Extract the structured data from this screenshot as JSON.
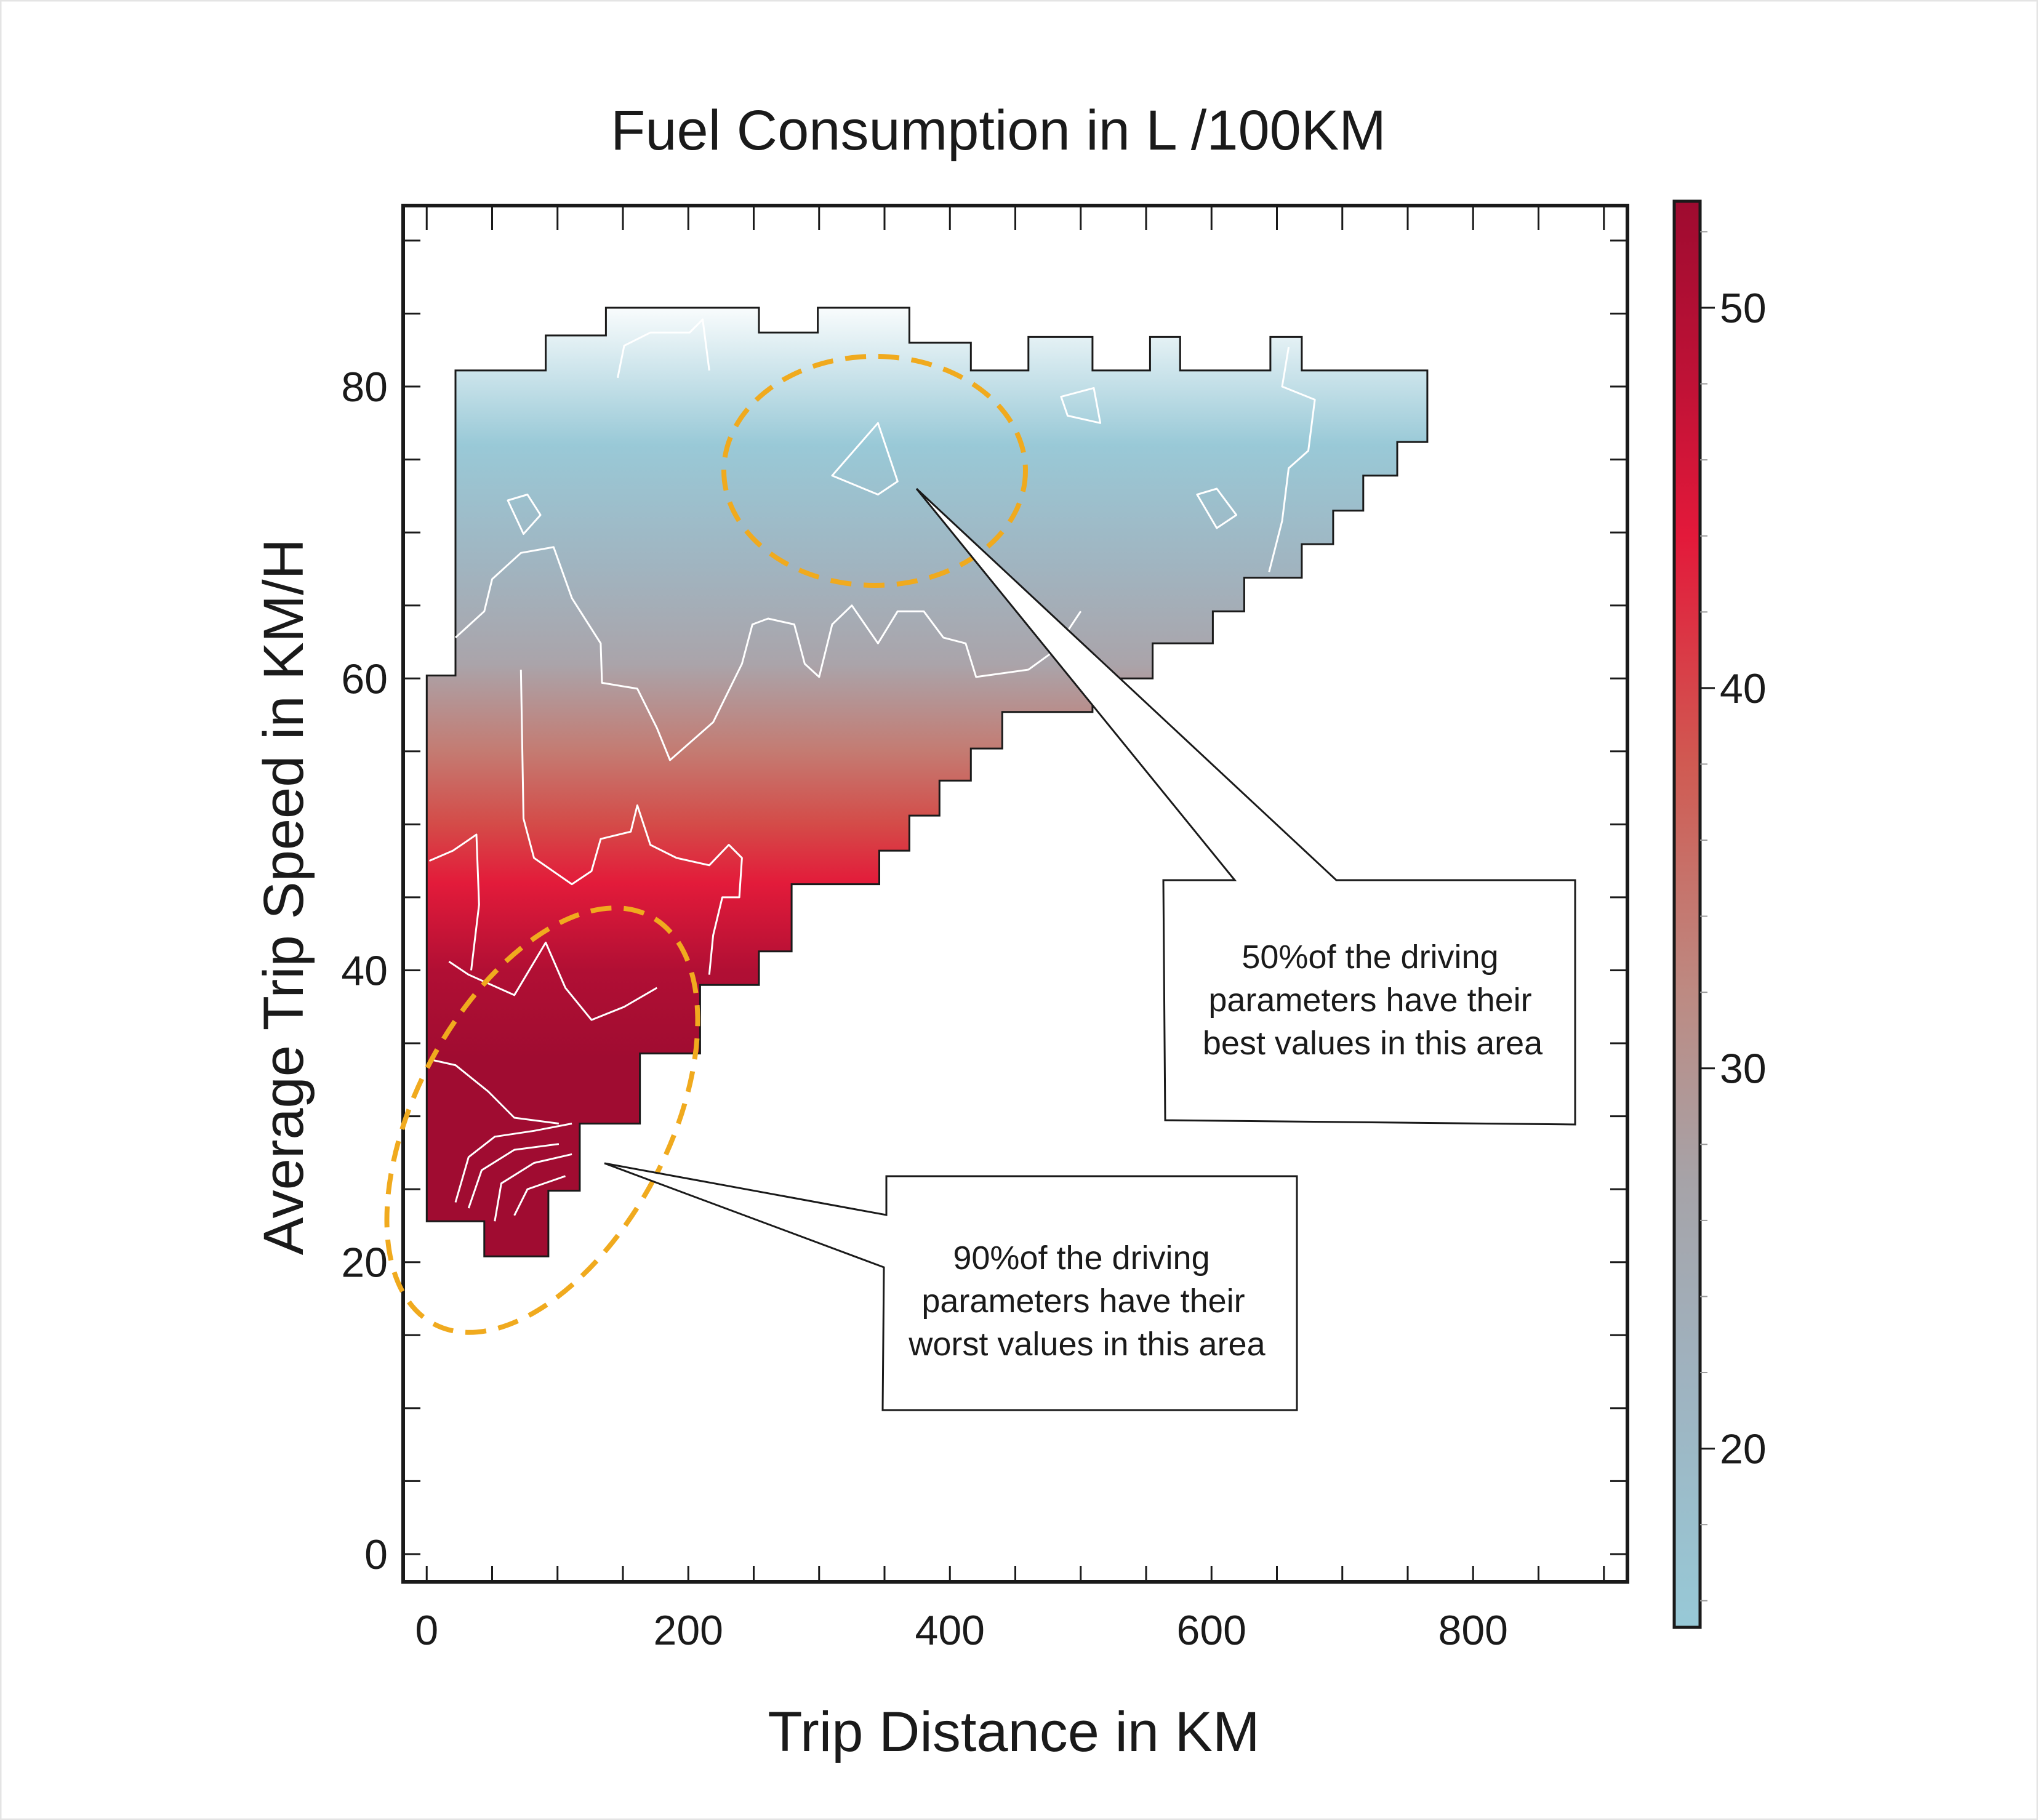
{
  "chart_data": {
    "type": "heatmap",
    "title": "Fuel Consumption in L /100KM",
    "xlabel": "Trip Distance in KM",
    "ylabel": "Average Trip Speed in KM/H",
    "xlim": [
      -18,
      918
    ],
    "ylim": [
      -1.9,
      92.4
    ],
    "xticks": [
      0,
      200,
      400,
      600,
      800
    ],
    "xtick_labels": [
      "0",
      "200",
      "400",
      "600",
      "800"
    ],
    "yticks": [
      0,
      20,
      40,
      60,
      80
    ],
    "ytick_labels": [
      "0",
      "20",
      "40",
      "60",
      "80"
    ],
    "x_minor_step": 50,
    "y_minor_step": 5,
    "grid": false,
    "colorbar": {
      "range": [
        15.3,
        52.8
      ],
      "ticks": [
        20,
        30,
        40,
        50
      ],
      "tick_labels": [
        "20",
        "30",
        "40",
        "50"
      ],
      "minor_step": 2,
      "stops": [
        {
          "value": 15.3,
          "color": "#97c9d7"
        },
        {
          "value": 22,
          "color": "#9fb2bf"
        },
        {
          "value": 27,
          "color": "#a6a3a8"
        },
        {
          "value": 32,
          "color": "#bd8a82"
        },
        {
          "value": 38,
          "color": "#d05a52"
        },
        {
          "value": 44,
          "color": "#e3193a"
        },
        {
          "value": 48,
          "color": "#bf1236"
        },
        {
          "value": 52.8,
          "color": "#9e0b30"
        }
      ]
    },
    "region_gradient_by_speed": [
      {
        "speed": 86,
        "color": "#ffffff"
      },
      {
        "speed": 76,
        "color": "#99c9d7"
      },
      {
        "speed": 68,
        "color": "#a0b5c1"
      },
      {
        "speed": 61,
        "color": "#aaa4aa"
      },
      {
        "speed": 55,
        "color": "#c47b72"
      },
      {
        "speed": 50,
        "color": "#d44b48"
      },
      {
        "speed": 46,
        "color": "#e31b3a"
      },
      {
        "speed": 40,
        "color": "#b10f34"
      },
      {
        "speed": 34,
        "color": "#a00c31"
      }
    ],
    "region_outline": [
      [
        0,
        60.2
      ],
      [
        22,
        60.2
      ],
      [
        22,
        81.1
      ],
      [
        91,
        81.1
      ],
      [
        91,
        83.5
      ],
      [
        137,
        83.5
      ],
      [
        137,
        85.4
      ],
      [
        254,
        85.4
      ],
      [
        254,
        83.7
      ],
      [
        299,
        83.7
      ],
      [
        299,
        85.4
      ],
      [
        369,
        85.4
      ],
      [
        369,
        83.0
      ],
      [
        416,
        83.0
      ],
      [
        416,
        81.1
      ],
      [
        460,
        81.1
      ],
      [
        460,
        83.4
      ],
      [
        509,
        83.4
      ],
      [
        509,
        81.1
      ],
      [
        553,
        81.1
      ],
      [
        553,
        83.4
      ],
      [
        576,
        83.4
      ],
      [
        576,
        81.1
      ],
      [
        645,
        81.1
      ],
      [
        645,
        83.4
      ],
      [
        669,
        83.4
      ],
      [
        669,
        81.1
      ],
      [
        765,
        81.1
      ],
      [
        765,
        76.2
      ],
      [
        742,
        76.2
      ],
      [
        742,
        73.9
      ],
      [
        716,
        73.9
      ],
      [
        716,
        71.5
      ],
      [
        693,
        71.5
      ],
      [
        693,
        69.2
      ],
      [
        669,
        69.2
      ],
      [
        669,
        66.9
      ],
      [
        625,
        66.9
      ],
      [
        625,
        64.6
      ],
      [
        601,
        64.6
      ],
      [
        601,
        62.4
      ],
      [
        555,
        62.4
      ],
      [
        555,
        60.0
      ],
      [
        509,
        60.0
      ],
      [
        509,
        57.7
      ],
      [
        440,
        57.7
      ],
      [
        440,
        55.2
      ],
      [
        416,
        55.2
      ],
      [
        416,
        53.0
      ],
      [
        392,
        53.0
      ],
      [
        392,
        50.6
      ],
      [
        369,
        50.6
      ],
      [
        369,
        48.2
      ],
      [
        346,
        48.2
      ],
      [
        346,
        45.9
      ],
      [
        279,
        45.9
      ],
      [
        279,
        41.3
      ],
      [
        254,
        41.3
      ],
      [
        254,
        39.0
      ],
      [
        209,
        39.0
      ],
      [
        209,
        34.3
      ],
      [
        163,
        34.3
      ],
      [
        163,
        29.5
      ],
      [
        117,
        29.5
      ],
      [
        117,
        24.9
      ],
      [
        93,
        24.9
      ],
      [
        93,
        20.4
      ],
      [
        44,
        20.4
      ],
      [
        44,
        22.8
      ],
      [
        0,
        22.8
      ]
    ],
    "contours": [
      {
        "closed": false,
        "points": [
          [
            22,
            62.8
          ],
          [
            44,
            64.6
          ],
          [
            50,
            66.8
          ],
          [
            72,
            68.6
          ],
          [
            97,
            69.0
          ],
          [
            111,
            65.5
          ],
          [
            133,
            62.4
          ],
          [
            134,
            59.7
          ],
          [
            161,
            59.3
          ],
          [
            176,
            56.6
          ],
          [
            186,
            54.4
          ],
          [
            219,
            57.0
          ],
          [
            241,
            61.0
          ],
          [
            249,
            63.7
          ],
          [
            261,
            64.1
          ],
          [
            281,
            63.7
          ],
          [
            289,
            61.0
          ],
          [
            300,
            60.1
          ],
          [
            310,
            63.7
          ],
          [
            325,
            65.0
          ],
          [
            345,
            62.4
          ],
          [
            360,
            64.6
          ],
          [
            380,
            64.6
          ],
          [
            395,
            62.8
          ],
          [
            412,
            62.4
          ],
          [
            420,
            60.1
          ],
          [
            460,
            60.6
          ],
          [
            480,
            61.9
          ],
          [
            500,
            64.6
          ]
        ]
      },
      {
        "closed": false,
        "points": [
          [
            72,
            60.6
          ],
          [
            74,
            50.4
          ],
          [
            82,
            47.7
          ],
          [
            111,
            45.9
          ],
          [
            126,
            46.8
          ],
          [
            133,
            49.0
          ],
          [
            156,
            49.5
          ],
          [
            161,
            51.3
          ],
          [
            171,
            48.6
          ],
          [
            191,
            47.7
          ],
          [
            216,
            47.2
          ],
          [
            231,
            48.6
          ],
          [
            241,
            47.7
          ],
          [
            239,
            45.0
          ],
          [
            226,
            45.0
          ],
          [
            219,
            42.4
          ],
          [
            216,
            39.7
          ]
        ]
      },
      {
        "closed": false,
        "points": [
          [
            2,
            47.5
          ],
          [
            20,
            48.2
          ],
          [
            38,
            49.3
          ],
          [
            40,
            44.5
          ],
          [
            34,
            40.0
          ]
        ]
      },
      {
        "closed": false,
        "points": [
          [
            17,
            40.6
          ],
          [
            32,
            39.7
          ],
          [
            67,
            38.3
          ],
          [
            91,
            41.9
          ],
          [
            106,
            38.8
          ],
          [
            126,
            36.6
          ],
          [
            151,
            37.5
          ],
          [
            176,
            38.8
          ]
        ]
      },
      {
        "closed": false,
        "points": [
          [
            2,
            33.9
          ],
          [
            22,
            33.5
          ],
          [
            47,
            31.7
          ],
          [
            67,
            29.9
          ],
          [
            101,
            29.5
          ]
        ]
      },
      {
        "closed": false,
        "points": [
          [
            22,
            24.1
          ],
          [
            32,
            27.2
          ],
          [
            52,
            28.6
          ],
          [
            82,
            29.0
          ],
          [
            111,
            29.5
          ]
        ]
      },
      {
        "closed": false,
        "points": [
          [
            32,
            23.7
          ],
          [
            42,
            26.3
          ],
          [
            67,
            27.7
          ],
          [
            101,
            28.1
          ]
        ]
      },
      {
        "closed": false,
        "points": [
          [
            52,
            22.8
          ],
          [
            57,
            25.4
          ],
          [
            82,
            26.8
          ],
          [
            111,
            27.4
          ]
        ]
      },
      {
        "closed": false,
        "points": [
          [
            67,
            23.2
          ],
          [
            77,
            25.0
          ],
          [
            106,
            25.9
          ]
        ]
      },
      {
        "closed": true,
        "points": [
          [
            310,
            73.9
          ],
          [
            345,
            77.5
          ],
          [
            360,
            73.5
          ],
          [
            345,
            72.6
          ]
        ]
      },
      {
        "closed": true,
        "points": [
          [
            62,
            72.2
          ],
          [
            77,
            72.6
          ],
          [
            87,
            71.2
          ],
          [
            74,
            69.9
          ]
        ]
      },
      {
        "closed": true,
        "points": [
          [
            589,
            72.6
          ],
          [
            604,
            73.0
          ],
          [
            619,
            71.2
          ],
          [
            604,
            70.3
          ]
        ]
      },
      {
        "closed": true,
        "points": [
          [
            485,
            79.3
          ],
          [
            510,
            79.9
          ],
          [
            515,
            77.5
          ],
          [
            490,
            78.0
          ]
        ]
      },
      {
        "closed": false,
        "points": [
          [
            659,
            82.7
          ],
          [
            654,
            80.0
          ],
          [
            679,
            79.1
          ],
          [
            674,
            75.6
          ],
          [
            659,
            74.4
          ],
          [
            654,
            70.8
          ],
          [
            644,
            67.3
          ]
        ]
      },
      {
        "closed": false,
        "points": [
          [
            146,
            80.6
          ],
          [
            151,
            82.8
          ],
          [
            171,
            83.7
          ],
          [
            201,
            83.7
          ],
          [
            211,
            84.6
          ],
          [
            216,
            81.1
          ]
        ]
      }
    ],
    "annotations": [
      {
        "label": "best-area",
        "lines": [
          "50%of the driving",
          "parameters have their",
          "best values in this area"
        ]
      },
      {
        "label": "worst-area",
        "lines": [
          "90%of the driving",
          "parameters have their",
          "worst values in this area"
        ]
      }
    ],
    "highlight_color": "#f0aa1e"
  }
}
